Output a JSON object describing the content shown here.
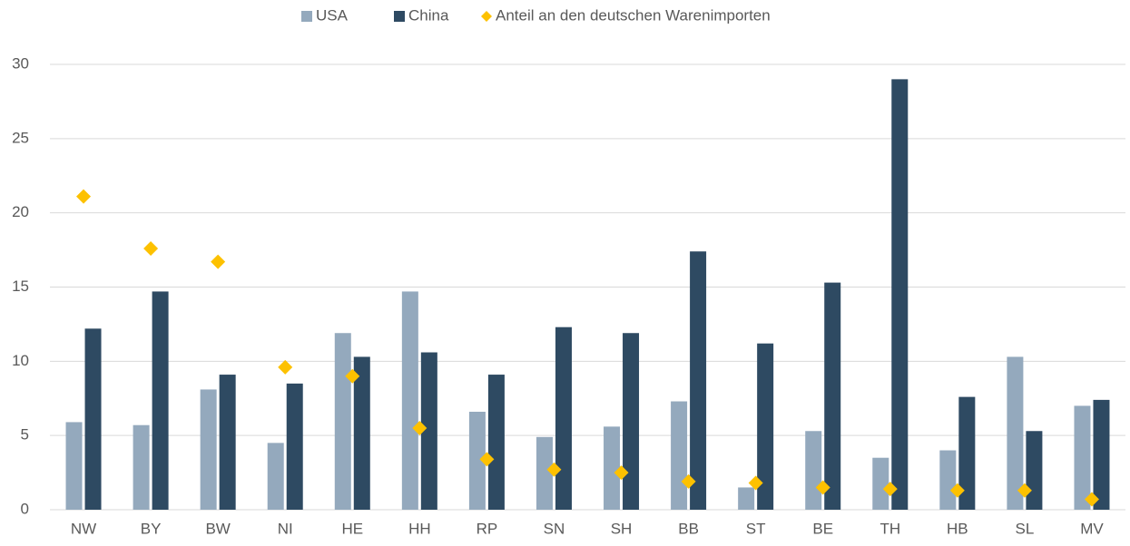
{
  "chart_data": {
    "type": "bar",
    "categories": [
      "NW",
      "BY",
      "BW",
      "NI",
      "HE",
      "HH",
      "RP",
      "SN",
      "SH",
      "BB",
      "ST",
      "BE",
      "TH",
      "HB",
      "SL",
      "MV"
    ],
    "series": [
      {
        "name": "USA",
        "color": "#94a9bd",
        "type": "bar",
        "values": [
          5.9,
          5.7,
          8.1,
          4.5,
          11.9,
          14.7,
          6.6,
          4.9,
          5.6,
          7.3,
          1.5,
          5.3,
          3.5,
          4.0,
          10.3,
          7.0
        ]
      },
      {
        "name": "China",
        "color": "#2e4a62",
        "type": "bar",
        "values": [
          12.2,
          14.7,
          9.1,
          8.5,
          10.3,
          10.6,
          9.1,
          12.3,
          11.9,
          17.4,
          11.2,
          15.3,
          29.0,
          7.6,
          5.3,
          7.4
        ]
      },
      {
        "name": "Anteil an den deutschen Warenimporten",
        "color": "#fdc100",
        "type": "scatter",
        "values": [
          21.1,
          17.6,
          16.7,
          9.6,
          9.0,
          5.5,
          3.4,
          2.7,
          2.5,
          1.9,
          1.8,
          1.5,
          1.4,
          1.3,
          1.3,
          0.7
        ]
      }
    ],
    "ylim": [
      0,
      30
    ],
    "yticks": [
      0,
      5,
      10,
      15,
      20,
      25,
      30
    ],
    "grid": true,
    "legend": "top"
  }
}
